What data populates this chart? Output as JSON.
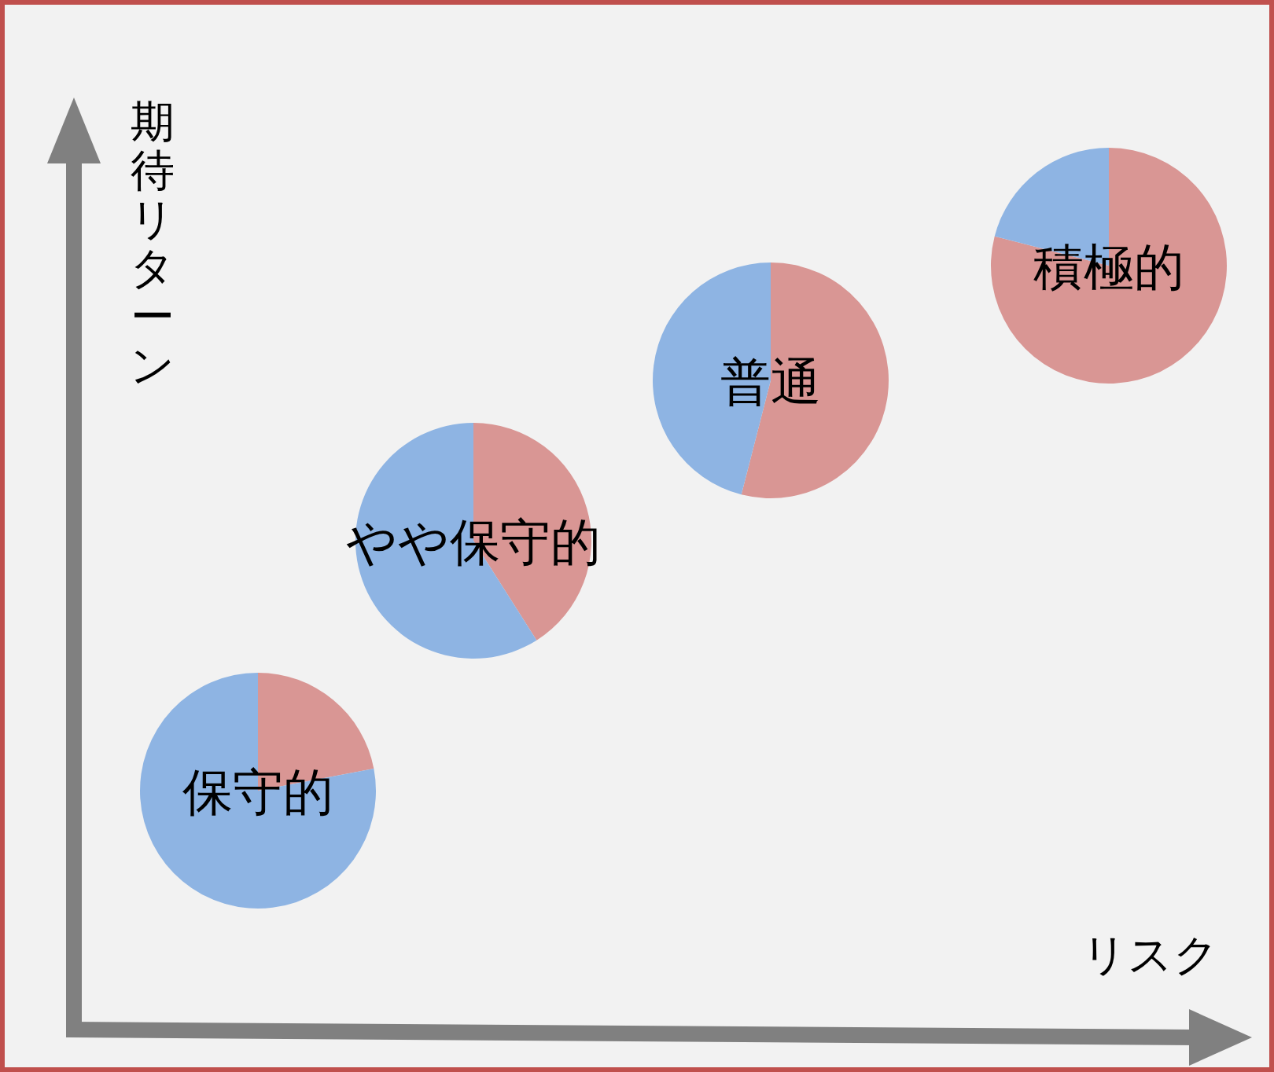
{
  "chart_data": [
    {
      "type": "pie",
      "title": "保守的",
      "categories": [
        null,
        null
      ],
      "values": [
        22,
        78
      ],
      "colors": [
        "#d99694",
        "#8eb4e3"
      ]
    },
    {
      "type": "pie",
      "title": "やや保守的",
      "categories": [
        null,
        null
      ],
      "values": [
        41,
        59
      ],
      "colors": [
        "#d99694",
        "#8eb4e3"
      ]
    },
    {
      "type": "pie",
      "title": "普通",
      "categories": [
        null,
        null
      ],
      "values": [
        54,
        46
      ],
      "colors": [
        "#d99694",
        "#8eb4e3"
      ]
    },
    {
      "type": "pie",
      "title": "積極的",
      "categories": [
        null,
        null
      ],
      "values": [
        79,
        21
      ],
      "colors": [
        "#d99694",
        "#8eb4e3"
      ]
    },
    {
      "type": "other",
      "xlabel": "リスク",
      "ylabel": "期待リターン"
    }
  ]
}
